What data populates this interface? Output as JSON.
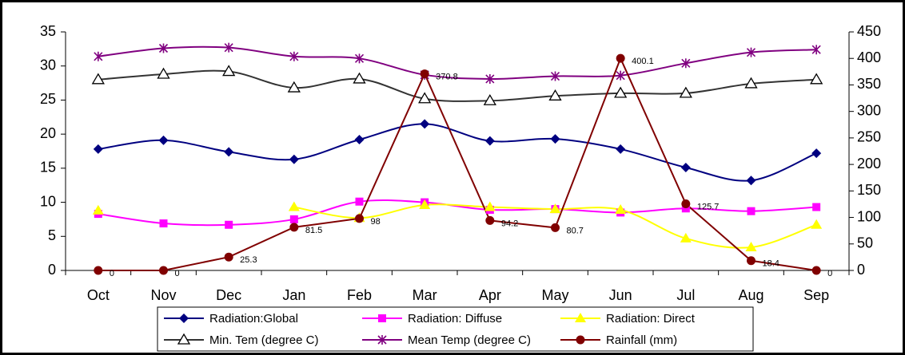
{
  "chart_data": {
    "type": "line",
    "categories": [
      "Oct",
      "Nov",
      "Dec",
      "Jan",
      "Feb",
      "Mar",
      "Apr",
      "May",
      "Jun",
      "Jul",
      "Aug",
      "Sep"
    ],
    "ylim": [
      0,
      35
    ],
    "yticks": [
      0,
      5,
      10,
      15,
      20,
      25,
      30,
      35
    ],
    "y2lim": [
      0,
      450
    ],
    "y2ticks": [
      0,
      50,
      100,
      150,
      200,
      250,
      300,
      350,
      400,
      450
    ],
    "grid": false,
    "legend": "bottom",
    "series": [
      {
        "name": "Radiation:Global",
        "color": "#000080",
        "marker": "diamond",
        "smooth": true,
        "values": [
          17.8,
          19.1,
          17.4,
          16.3,
          19.2,
          21.5,
          19.0,
          19.3,
          17.8,
          15.1,
          13.2,
          17.2
        ]
      },
      {
        "name": "Radiation: Diffuse",
        "color": "#ff00ff",
        "marker": "square",
        "smooth": true,
        "values": [
          8.3,
          6.9,
          6.7,
          7.5,
          10.1,
          10.0,
          8.9,
          9.0,
          8.5,
          9.1,
          8.7,
          9.3
        ]
      },
      {
        "name": "Radiation: Direct",
        "color": "#ffff00",
        "marker": "triangle",
        "smooth": true,
        "values": [
          8.8,
          null,
          null,
          9.3,
          7.7,
          9.6,
          9.3,
          9.0,
          8.9,
          4.7,
          3.4,
          6.7
        ]
      },
      {
        "name": "Min. Tem (degree C)",
        "color": "#333333",
        "marker": "open-triangle",
        "smooth": true,
        "values": [
          28.0,
          28.8,
          29.2,
          26.8,
          28.1,
          25.2,
          24.9,
          25.6,
          26.0,
          26.0,
          27.4,
          28.0
        ]
      },
      {
        "name": "Mean Temp (degree C)",
        "color": "#800080",
        "marker": "asterisk",
        "smooth": true,
        "values": [
          31.4,
          32.6,
          32.7,
          31.4,
          31.1,
          28.7,
          28.1,
          28.5,
          28.6,
          30.4,
          32.0,
          32.4
        ]
      },
      {
        "name": "Rainfall (mm)",
        "color": "#800000",
        "marker": "circle",
        "smooth": false,
        "axis": "y2",
        "data_labels": true,
        "values": [
          0,
          0,
          25.3,
          81.5,
          98,
          370.8,
          94.2,
          80.7,
          400.1,
          125.7,
          18.4,
          0
        ]
      }
    ]
  }
}
